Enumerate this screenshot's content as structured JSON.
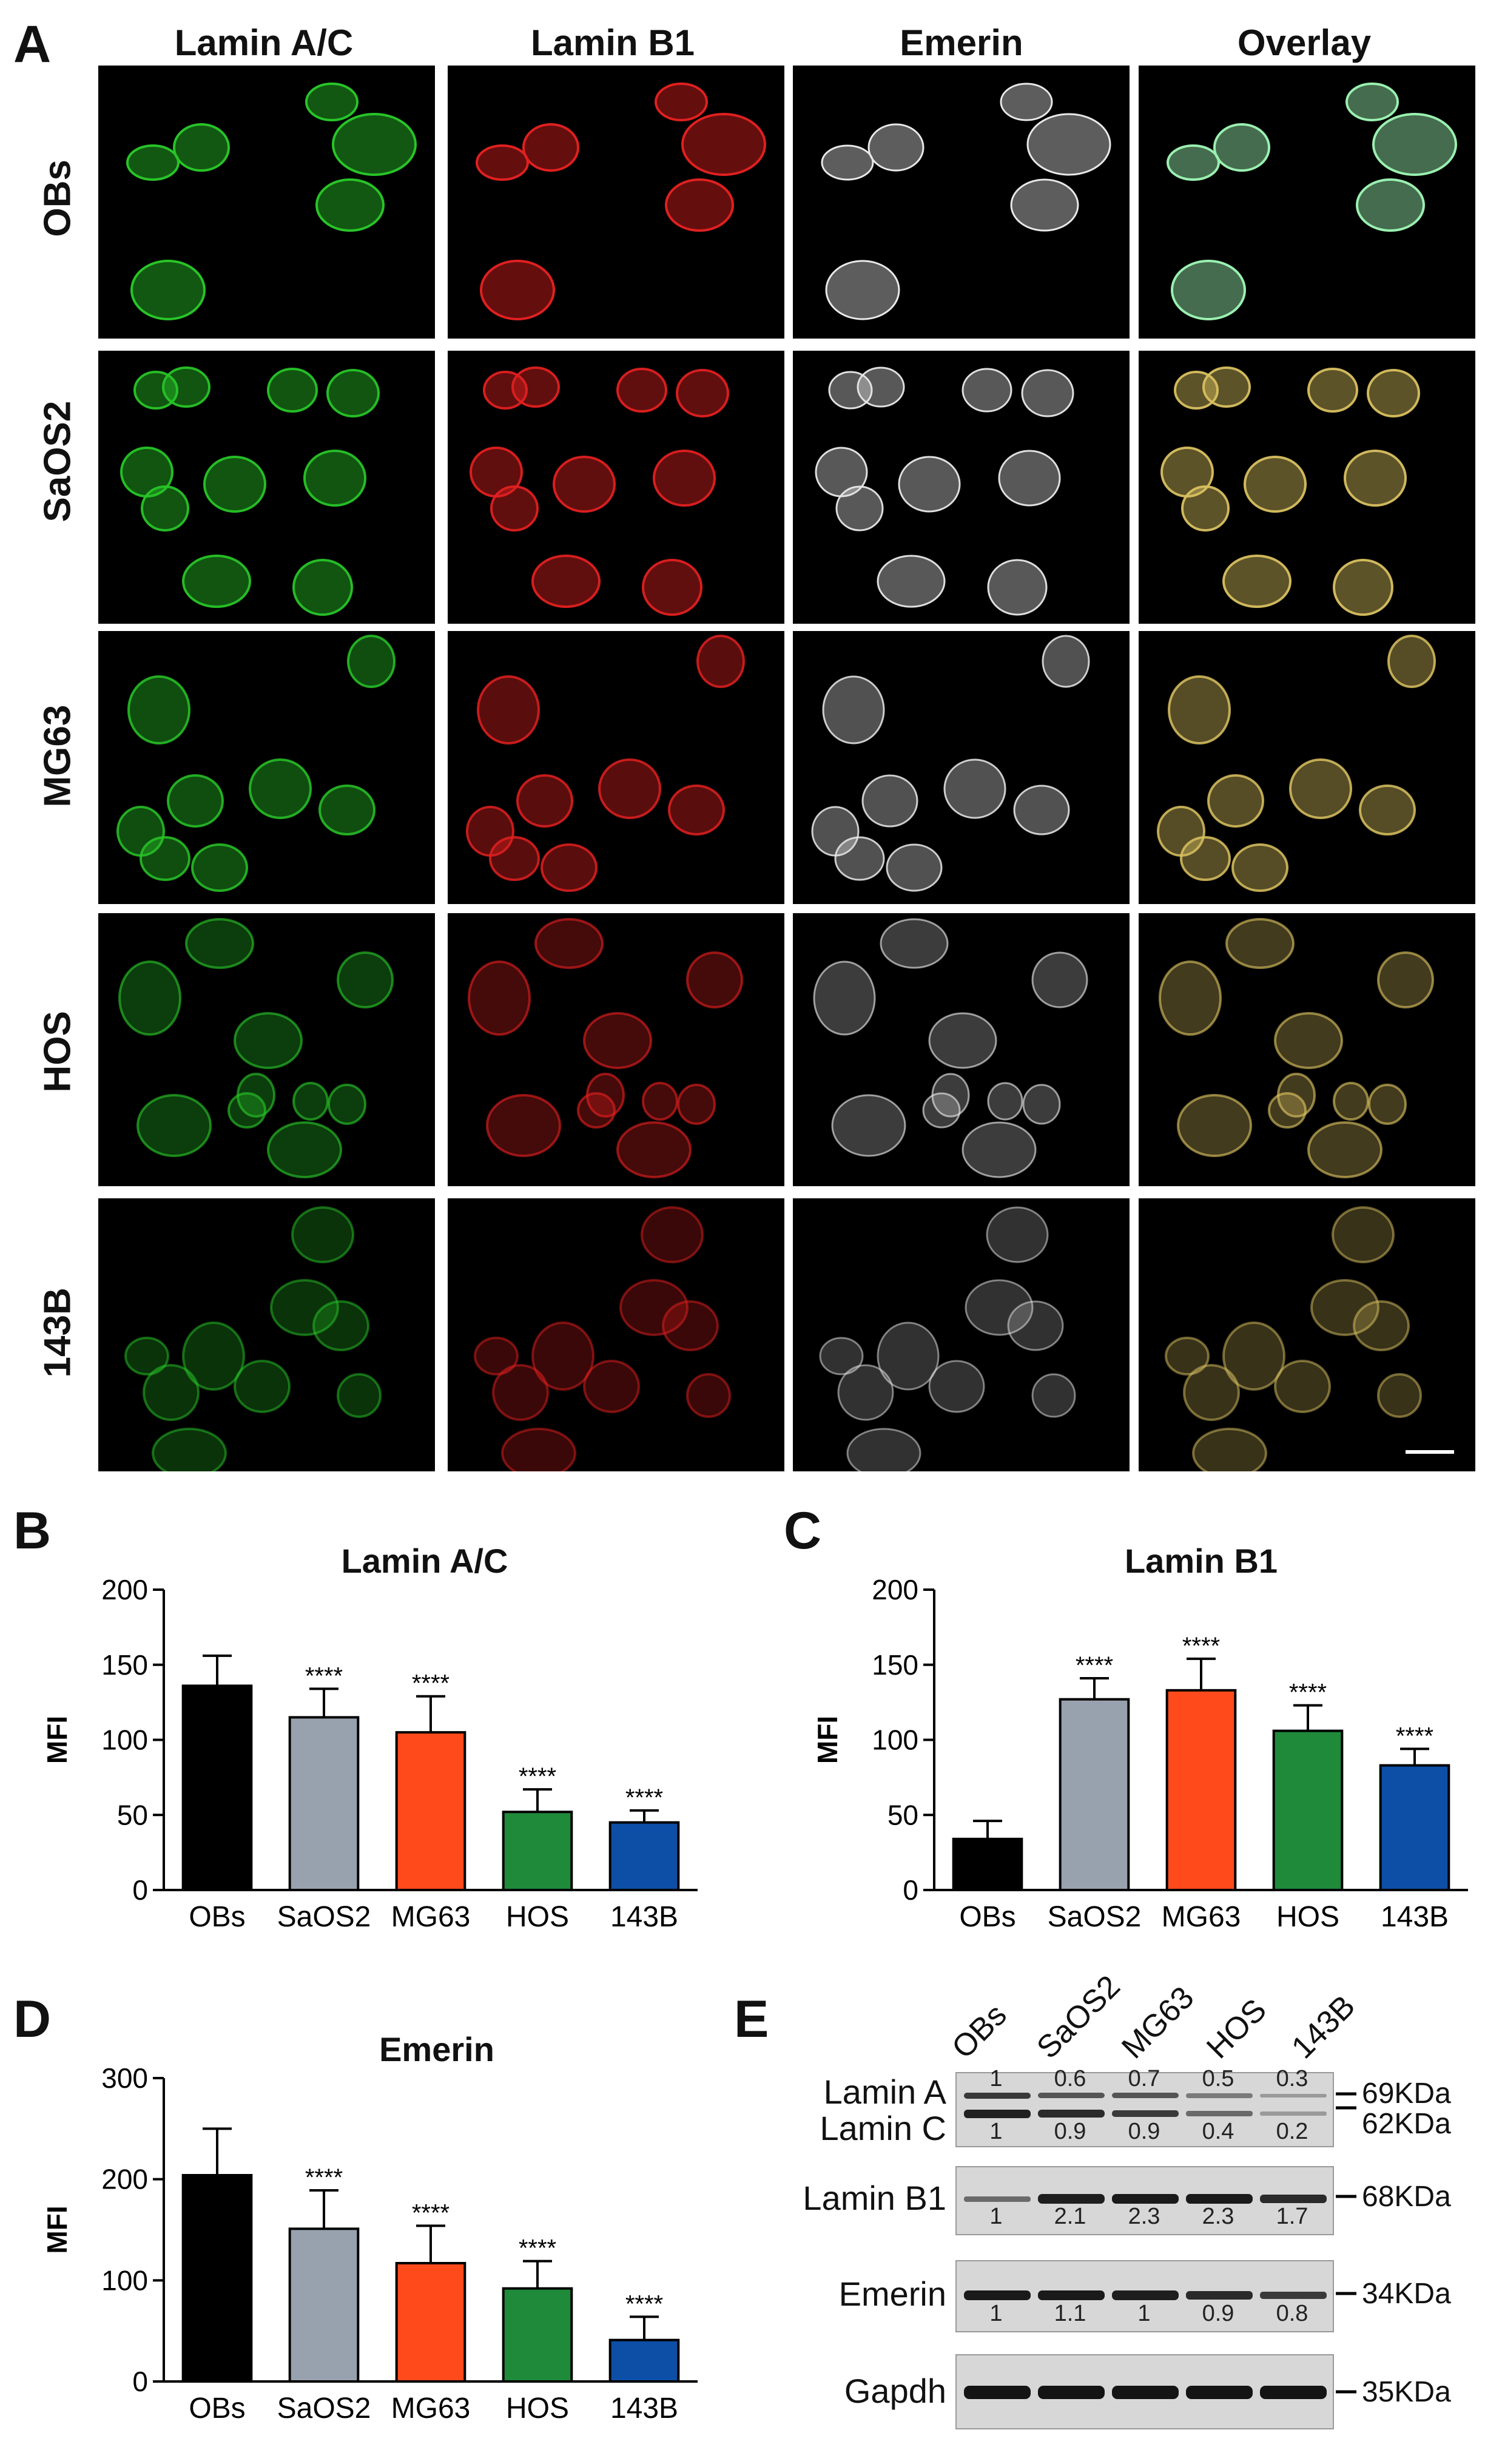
{
  "panel_a": {
    "letter": "A",
    "columns": [
      "Lamin A/C",
      "Lamin B1",
      "Emerin",
      "Overlay"
    ],
    "rows": [
      "OBs",
      "SaOS2",
      "MG63",
      "HOS",
      "143B"
    ],
    "colors": {
      "lamin_ac": "#28c428",
      "lamin_b1": "#e02020",
      "emerin": "#e8e8e8",
      "overlay_obs": "#9af0b0",
      "overlay_other": "#d8c060"
    }
  },
  "panel_b": {
    "letter": "B",
    "chart_data": {
      "type": "bar",
      "title": "Lamin A/C",
      "ylabel": "MFI",
      "categories": [
        "OBs",
        "SaOS2",
        "MG63",
        "HOS",
        "143B"
      ],
      "values": [
        136,
        115,
        105,
        52,
        45
      ],
      "errors": [
        20,
        19,
        24,
        15,
        8
      ],
      "significance": [
        "",
        "****",
        "****",
        "****",
        "****"
      ],
      "yticks": [
        "0",
        "50",
        "100",
        "150",
        "200"
      ],
      "ylim": [
        0,
        200
      ],
      "colors": [
        "#000000",
        "#98a2ae",
        "#ff4a1c",
        "#1e8a3a",
        "#0d4fa6"
      ]
    }
  },
  "panel_c": {
    "letter": "C",
    "chart_data": {
      "type": "bar",
      "title": "Lamin B1",
      "ylabel": "MFI",
      "categories": [
        "OBs",
        "SaOS2",
        "MG63",
        "HOS",
        "143B"
      ],
      "values": [
        34,
        127,
        133,
        106,
        83
      ],
      "errors": [
        12,
        14,
        21,
        17,
        11
      ],
      "significance": [
        "",
        "****",
        "****",
        "****",
        "****"
      ],
      "yticks": [
        "0",
        "50",
        "100",
        "150",
        "200"
      ],
      "ylim": [
        0,
        200
      ],
      "colors": [
        "#000000",
        "#98a2ae",
        "#ff4a1c",
        "#1e8a3a",
        "#0d4fa6"
      ]
    }
  },
  "panel_d": {
    "letter": "D",
    "chart_data": {
      "type": "bar",
      "title": "Emerin",
      "ylabel": "MFI",
      "categories": [
        "OBs",
        "SaOS2",
        "MG63",
        "HOS",
        "143B"
      ],
      "values": [
        204,
        151,
        117,
        92,
        41
      ],
      "errors": [
        46,
        38,
        37,
        27,
        23
      ],
      "significance": [
        "",
        "****",
        "****",
        "****",
        "****"
      ],
      "yticks": [
        "0",
        "100",
        "200",
        "300"
      ],
      "ylim": [
        0,
        300
      ],
      "colors": [
        "#000000",
        "#98a2ae",
        "#ff4a1c",
        "#1e8a3a",
        "#0d4fa6"
      ]
    }
  },
  "panel_e": {
    "letter": "E",
    "lanes": [
      "OBs",
      "SaOS2",
      "MG63",
      "HOS",
      "143B"
    ],
    "blots": [
      {
        "labels": [
          "Lamin A",
          "Lamin C"
        ],
        "kda": [
          "69KDa",
          "62KDa"
        ],
        "quant_top": [
          "1",
          "0.6",
          "0.7",
          "0.5",
          "0.3"
        ],
        "quant_bottom": [
          "1",
          "0.9",
          "0.9",
          "0.4",
          "0.2"
        ]
      },
      {
        "labels": [
          "Lamin B1"
        ],
        "kda": [
          "68KDa"
        ],
        "quant_bottom": [
          "1",
          "2.1",
          "2.3",
          "2.3",
          "1.7"
        ]
      },
      {
        "labels": [
          "Emerin"
        ],
        "kda": [
          "34KDa"
        ],
        "quant_bottom": [
          "1",
          "1.1",
          "1",
          "0.9",
          "0.8"
        ]
      },
      {
        "labels": [
          "Gapdh"
        ],
        "kda": [
          "35KDa"
        ]
      }
    ]
  }
}
